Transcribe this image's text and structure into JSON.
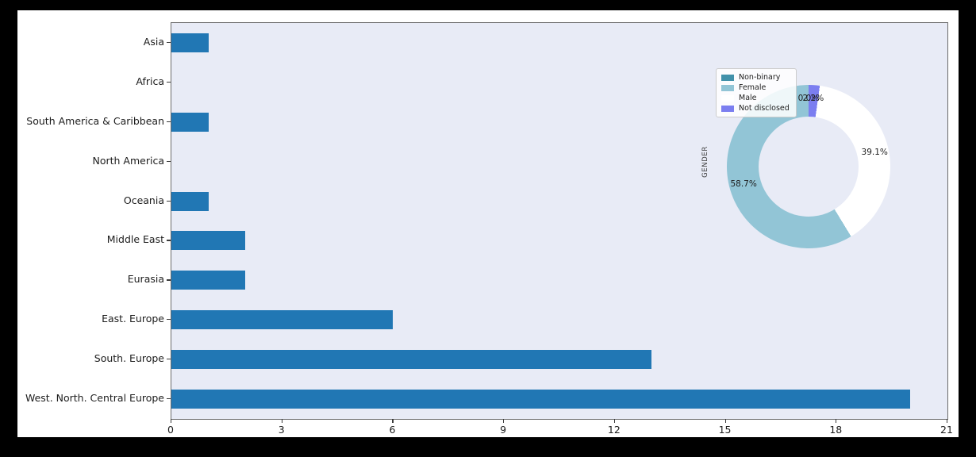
{
  "chart_data": [
    {
      "type": "bar",
      "orientation": "horizontal",
      "title": "",
      "xlabel": "",
      "ylabel": "",
      "categories_top_to_bottom": [
        "Asia",
        "Africa",
        "South America & Caribbean",
        "North America",
        "Oceania",
        "Middle East",
        "Eurasia",
        "East. Europe",
        "South. Europe",
        "West. North. Central Europe"
      ],
      "values": [
        1,
        0,
        1,
        0,
        1,
        2,
        2,
        6,
        13,
        20
      ],
      "xlim": [
        0,
        21
      ],
      "xticks": [
        0,
        3,
        6,
        9,
        12,
        15,
        18,
        21
      ],
      "grid": false,
      "legend": null,
      "bar_color": "#2177b4",
      "plot_bg_color": "#e8ebf6"
    },
    {
      "type": "pie",
      "subtype": "donut",
      "title": "",
      "ylabel": "GENDER",
      "labels": [
        "Non-binary",
        "Female",
        "Male",
        "Not disclosed"
      ],
      "values_pct": [
        0.0,
        58.7,
        39.1,
        2.2
      ],
      "pct_labels": [
        "0.0%",
        "58.7%",
        "39.1%",
        "2.2%"
      ],
      "colors": [
        "#4191aa",
        "#92c5d6",
        "#ffffff",
        "#7b7ef0"
      ],
      "start_angle": 90,
      "direction": "counterclockwise",
      "legend_position": "upper left",
      "legend_entries": [
        "Non-binary",
        "Female",
        "Male",
        "Not disclosed"
      ]
    }
  ],
  "colors": {
    "figure_bg": "#ffffff",
    "outer_bg": "#000000",
    "spine": "#6a6a6a",
    "text": "#1c1c1c"
  }
}
